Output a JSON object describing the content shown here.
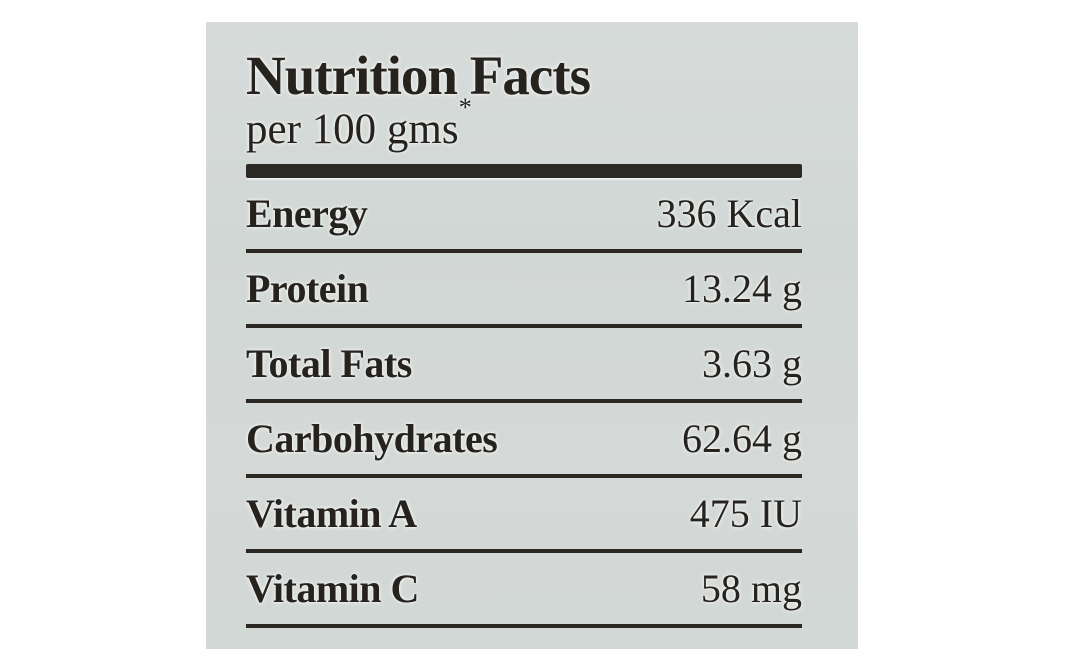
{
  "label": {
    "title": "Nutrition Facts",
    "serving_text": "per 100 gms",
    "serving_mark": "*",
    "rows": [
      {
        "label": "Energy",
        "value": "336 Kcal"
      },
      {
        "label": "Protein",
        "value": "13.24 g"
      },
      {
        "label": "Total Fats",
        "value": "3.63 g"
      },
      {
        "label": "Carbohydrates",
        "value": "62.64 g"
      },
      {
        "label": "Vitamin A",
        "value": "475 IU"
      },
      {
        "label": "Vitamin C",
        "value": "58 mg"
      }
    ],
    "colors": {
      "page_bg": "#ffffff",
      "panel_bg": "#d3d8d6",
      "text": "#26221d",
      "rule": "#2b2823"
    }
  }
}
